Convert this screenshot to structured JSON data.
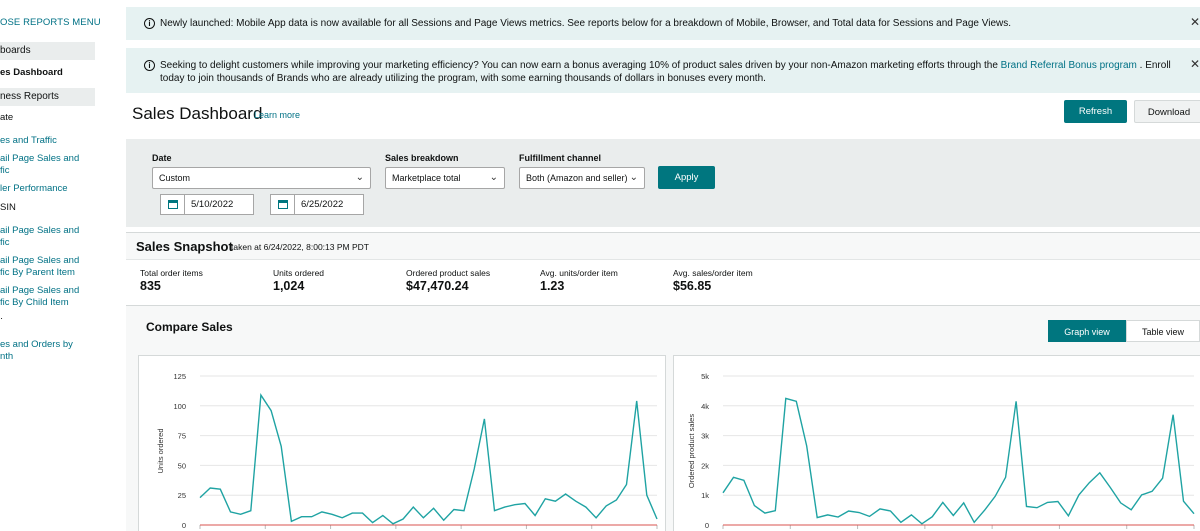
{
  "sidebar": {
    "close_menu": "OSE REPORTS MENU",
    "sections": [
      "boards",
      "ness Reports"
    ],
    "items": [
      {
        "label": "es Dashboard",
        "active": true
      },
      {
        "label": "ate",
        "plain": true
      },
      {
        "label": "es and Traffic"
      },
      {
        "label": "ail Page Sales and\nfic"
      },
      {
        "label": "ler Performance"
      },
      {
        "label": "SIN",
        "plain": true
      },
      {
        "label": "ail Page Sales and\nfic"
      },
      {
        "label": "ail Page Sales and\nfic By Parent Item"
      },
      {
        "label": "ail Page Sales and\nfic By Child Item"
      },
      {
        "label": "es and Orders by\nnth"
      }
    ]
  },
  "banner1": {
    "text": "Newly launched: Mobile App data is now available for all Sessions and Page Views metrics. See reports below for a breakdown of Mobile, Browser, and Total data for Sessions and Page Views."
  },
  "banner2": {
    "text_before": "Seeking to delight customers while improving your marketing efficiency? You can now earn a bonus averaging 10% of product sales driven by your non-Amazon marketing efforts through the ",
    "link": "Brand Referral Bonus program",
    "text_after": " . Enroll today to join thousands of Brands who are already utilizing the program, with some earning thousands of dollars in bonuses every month."
  },
  "header": {
    "title": "Sales Dashboard",
    "learn_more": "Learn more",
    "refresh": "Refresh",
    "download": "Download"
  },
  "filters": {
    "date_label": "Date",
    "date_value": "Custom",
    "breakdown_label": "Sales breakdown",
    "breakdown_value": "Marketplace total",
    "fulfillment_label": "Fulfillment channel",
    "fulfillment_value": "Both (Amazon and seller)",
    "apply": "Apply",
    "start_date": "5/10/2022",
    "end_date": "6/25/2022"
  },
  "snapshot": {
    "title": "Sales Snapshot",
    "taken_at": "taken at 6/24/2022, 8:00:13 PM PDT",
    "metrics": [
      {
        "label": "Total order items",
        "value": "835"
      },
      {
        "label": "Units ordered",
        "value": "1,024"
      },
      {
        "label": "Ordered product sales",
        "value": "$47,470.24"
      },
      {
        "label": "Avg. units/order item",
        "value": "1.23"
      },
      {
        "label": "Avg. sales/order item",
        "value": "$56.85"
      }
    ]
  },
  "compare": {
    "title": "Compare Sales",
    "graph_view": "Graph view",
    "table_view": "Table view"
  },
  "colors": {
    "accent": "#00767f",
    "line": "#1fa3a3",
    "baseline": "#d9534f",
    "banner_bg": "#e6f2f2",
    "link": "#007185"
  },
  "chart_data": [
    {
      "type": "line",
      "ylabel": "Units ordered",
      "ylim": [
        0,
        125
      ],
      "yticks": [
        "0",
        "25",
        "50",
        "75",
        "100",
        "125"
      ],
      "grid": true,
      "series": [
        {
          "values": [
            23,
            31,
            30,
            11,
            9,
            12,
            109,
            96,
            66,
            3,
            7,
            7,
            11,
            9,
            6,
            10,
            10,
            2,
            8,
            1,
            5,
            15,
            6,
            14,
            4,
            13,
            12,
            47,
            89,
            12,
            15,
            17,
            18,
            8,
            22,
            20,
            26,
            20,
            15,
            6,
            16,
            21,
            34,
            104,
            25,
            5
          ]
        },
        {
          "values": [
            0,
            0,
            0,
            0,
            0,
            0,
            0,
            0,
            0,
            0,
            0,
            0,
            0,
            0,
            0,
            0,
            0,
            0,
            0,
            0,
            0,
            0,
            0,
            0,
            0,
            0,
            0,
            0,
            0,
            0,
            0,
            0,
            0,
            0,
            0,
            0,
            0,
            0,
            0,
            0,
            0,
            0,
            0,
            0,
            0,
            0
          ]
        }
      ]
    },
    {
      "type": "line",
      "ylabel": "Ordered product sales",
      "ylim": [
        0,
        5000
      ],
      "yticks": [
        "0",
        "1k",
        "2k",
        "3k",
        "4k",
        "5k"
      ],
      "grid": true,
      "series": [
        {
          "values": [
            1080,
            1600,
            1500,
            650,
            400,
            480,
            4250,
            4150,
            2650,
            250,
            340,
            270,
            470,
            420,
            290,
            540,
            470,
            90,
            340,
            40,
            280,
            760,
            320,
            740,
            90,
            500,
            960,
            1600,
            4150,
            620,
            580,
            760,
            790,
            310,
            1010,
            1420,
            1750,
            1260,
            740,
            510,
            1010,
            1130,
            1570,
            3700,
            800,
            380
          ]
        },
        {
          "values": [
            0,
            0,
            0,
            0,
            0,
            0,
            0,
            0,
            0,
            0,
            0,
            0,
            0,
            0,
            0,
            0,
            0,
            0,
            0,
            0,
            0,
            0,
            0,
            0,
            0,
            0,
            0,
            0,
            0,
            0,
            0,
            0,
            0,
            0,
            0,
            0,
            0,
            0,
            0,
            0,
            0,
            0,
            0,
            0,
            0,
            0
          ]
        }
      ]
    }
  ]
}
